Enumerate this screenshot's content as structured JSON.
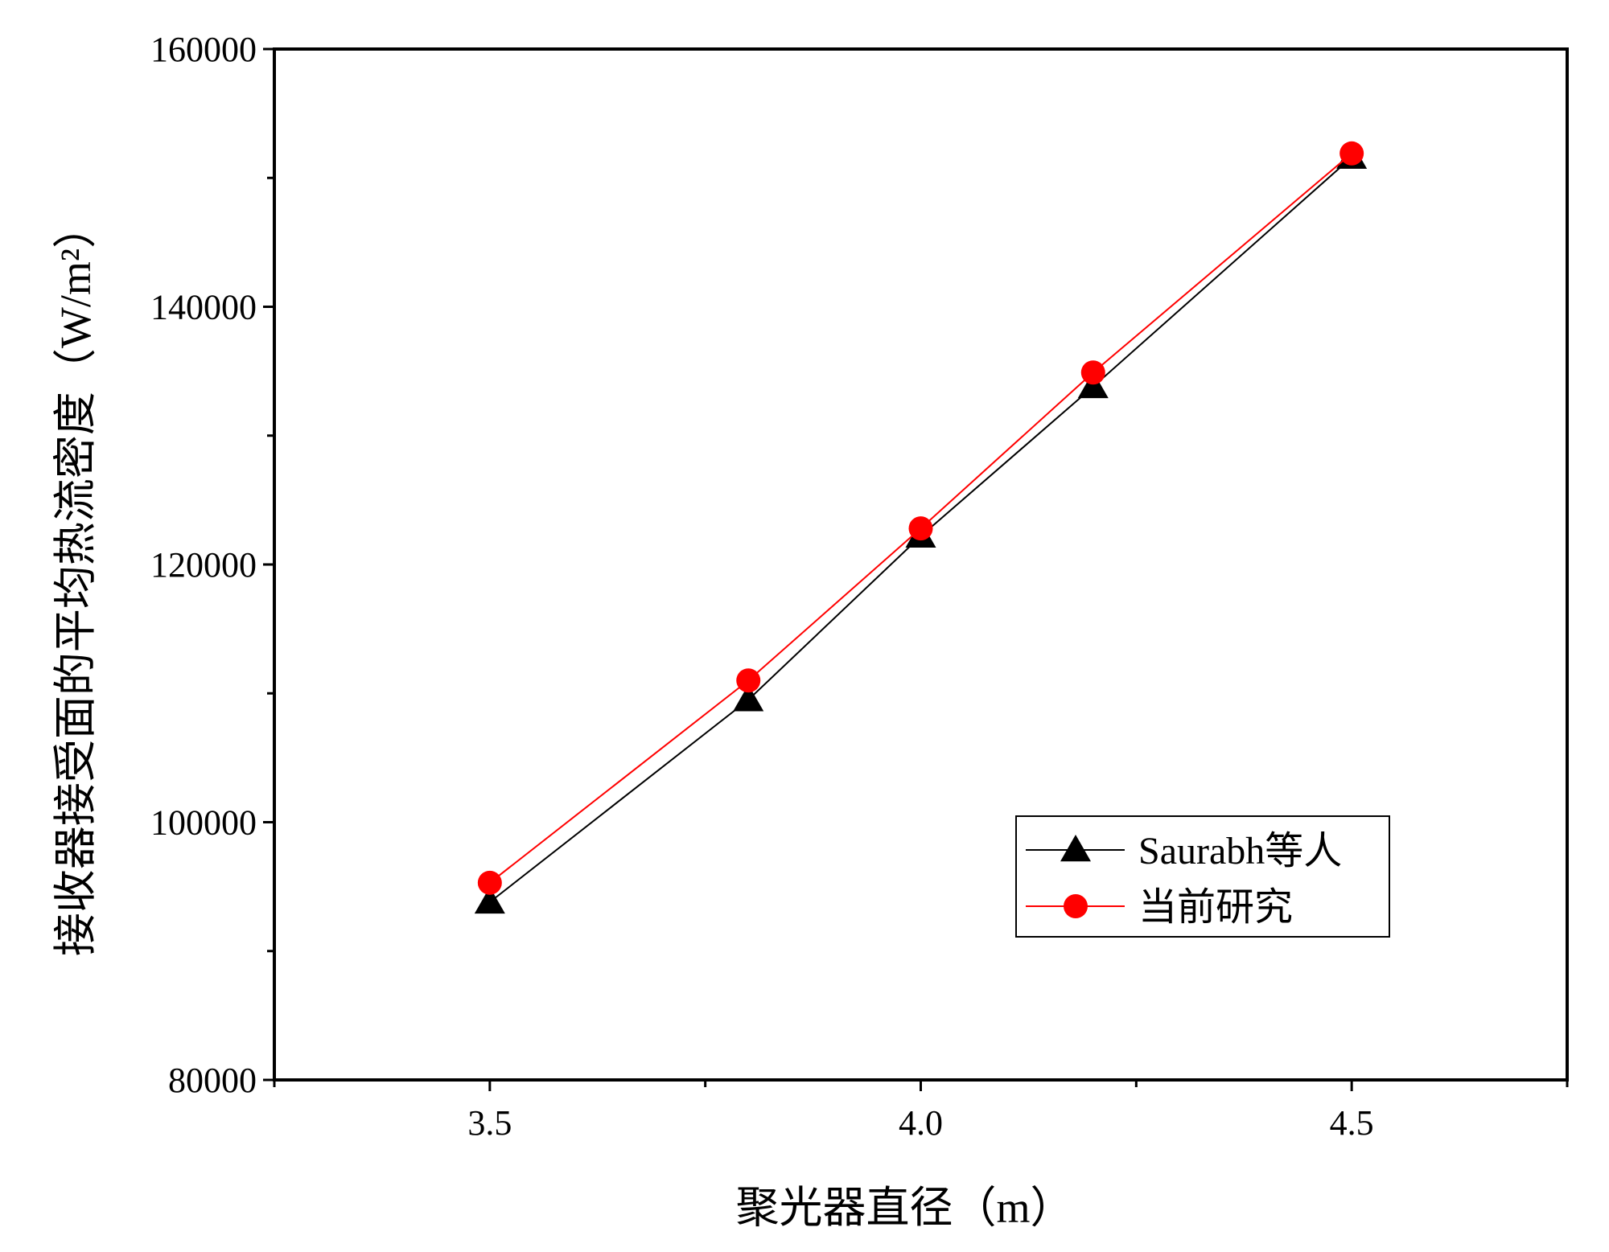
{
  "chart_data": {
    "type": "line",
    "title": "",
    "xlabel": "聚光器直径（m）",
    "ylabel": "接收器接受面的平均热流密度（W/m²）",
    "xlim": [
      3.25,
      4.75
    ],
    "ylim": [
      80000,
      160000
    ],
    "x_ticks": [
      3.5,
      4.0,
      4.5
    ],
    "x_tick_labels": [
      "3.5",
      "4.0",
      "4.5"
    ],
    "y_ticks": [
      80000,
      100000,
      120000,
      140000,
      160000
    ],
    "y_tick_labels": [
      "80000",
      "100000",
      "120000",
      "140000",
      "160000"
    ],
    "grid": false,
    "legend_position": "bottom-right",
    "series": [
      {
        "name": "Saurabh等人",
        "color": "#000000",
        "marker": "triangle",
        "x": [
          3.5,
          3.8,
          4.0,
          4.2,
          4.5
        ],
        "y": [
          93800,
          109500,
          122200,
          133800,
          151600
        ]
      },
      {
        "name": "当前研究",
        "color": "#ff0000",
        "marker": "circle",
        "x": [
          3.5,
          3.8,
          4.0,
          4.2,
          4.5
        ],
        "y": [
          95300,
          111000,
          122800,
          134900,
          151900
        ]
      }
    ]
  }
}
